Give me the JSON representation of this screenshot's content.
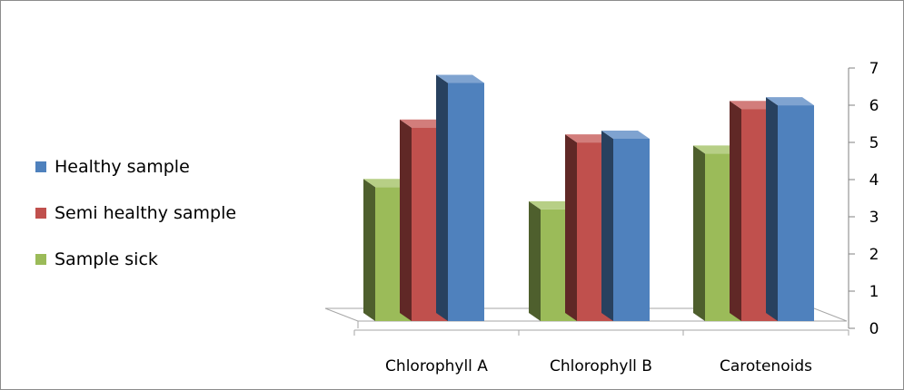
{
  "chart_data": {
    "type": "bar",
    "categories": [
      "Chlorophyll A",
      "Chlorophyll B",
      "Carotenoids"
    ],
    "series": [
      {
        "name": "Sample sick",
        "values": [
          3.7,
          3.1,
          4.6
        ],
        "color": "#9bbb59",
        "side_color": "#4e5f2d",
        "top_color": "#b7cf86"
      },
      {
        "name": "Semi healthy sample",
        "values": [
          5.3,
          4.9,
          5.8
        ],
        "color": "#c0504d",
        "side_color": "#602826",
        "top_color": "#d27d7b"
      },
      {
        "name": "Healthy sample",
        "values": [
          6.5,
          5.0,
          5.9
        ],
        "color": "#4f81bd",
        "side_color": "#28415f",
        "top_color": "#7fa3d0"
      }
    ],
    "legend_order": [
      "Healthy sample",
      "Semi healthy sample",
      "Sample sick"
    ],
    "yticks": [
      "0",
      "1",
      "2",
      "3",
      "4",
      "5",
      "6",
      "7"
    ],
    "ylim": [
      0,
      7
    ],
    "xlabel": "",
    "ylabel": "",
    "title": "",
    "grid": false,
    "legend_position": "left",
    "three_d": true
  }
}
